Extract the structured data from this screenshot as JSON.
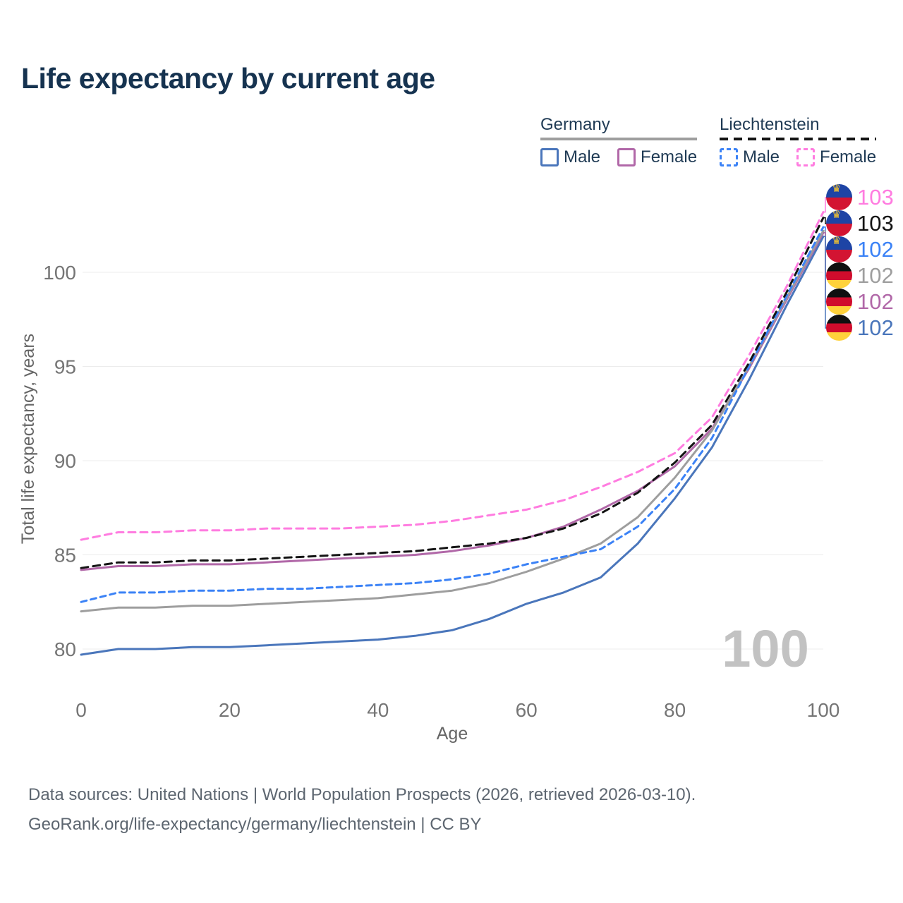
{
  "title": "Life expectancy by current age",
  "legend": {
    "groups": [
      {
        "name": "Germany",
        "line_style": "solid",
        "underline_color": "#9e9e9e",
        "items": [
          {
            "label": "Male",
            "color": "#4a76bb",
            "dashed": false
          },
          {
            "label": "Female",
            "color": "#b168a8",
            "dashed": false
          }
        ]
      },
      {
        "name": "Liechtenstein",
        "line_style": "dashed",
        "underline_color": "#141414",
        "items": [
          {
            "label": "Male",
            "color": "#3b82f6",
            "dashed": true
          },
          {
            "label": "Female",
            "color": "#ff7ce0",
            "dashed": true
          }
        ]
      }
    ]
  },
  "chart_data": {
    "type": "line",
    "title": "Life expectancy by current age",
    "xlabel": "Age",
    "ylabel": "Total life expectancy, years",
    "x_ticks": [
      0,
      20,
      40,
      60,
      80,
      100
    ],
    "y_ticks": [
      80,
      85,
      90,
      95,
      100
    ],
    "xlim": [
      0,
      100
    ],
    "ylim": [
      79,
      104
    ],
    "grid": "horizontal",
    "legend_position": "top-right",
    "watermark": "100",
    "x": [
      0,
      5,
      10,
      15,
      20,
      25,
      30,
      35,
      40,
      45,
      50,
      55,
      60,
      65,
      70,
      75,
      80,
      85,
      90,
      95,
      100
    ],
    "series": [
      {
        "name": "Liechtenstein Female",
        "flag": "liechtenstein",
        "sex": "Female",
        "color": "#ff7ce0",
        "dash": "10 7",
        "end_label": "103",
        "values": [
          85.8,
          86.2,
          86.2,
          86.3,
          86.3,
          86.4,
          86.4,
          86.4,
          86.5,
          86.6,
          86.8,
          87.1,
          87.4,
          87.9,
          88.6,
          89.4,
          90.4,
          92.3,
          95.6,
          99.2,
          103.2
        ]
      },
      {
        "name": "Liechtenstein Both sexes",
        "flag": "liechtenstein",
        "sex": "Total",
        "color": "#141414",
        "dash": "10 7",
        "end_label": "103",
        "values": [
          84.3,
          84.6,
          84.6,
          84.7,
          84.7,
          84.8,
          84.9,
          85.0,
          85.1,
          85.2,
          85.4,
          85.6,
          85.9,
          86.4,
          87.2,
          88.3,
          89.9,
          91.9,
          95.2,
          98.9,
          102.9
        ]
      },
      {
        "name": "Liechtenstein Male",
        "flag": "liechtenstein",
        "sex": "Male",
        "color": "#3b82f6",
        "dash": "8 6",
        "end_label": "102",
        "values": [
          82.5,
          83.0,
          83.0,
          83.1,
          83.1,
          83.2,
          83.2,
          83.3,
          83.4,
          83.5,
          83.7,
          84.0,
          84.5,
          84.9,
          85.3,
          86.5,
          88.5,
          91.2,
          95.0,
          98.7,
          102.4
        ]
      },
      {
        "name": "Germany Both sexes",
        "flag": "germany",
        "sex": "Total",
        "color": "#9e9e9e",
        "dash": null,
        "end_label": "102",
        "values": [
          82.0,
          82.2,
          82.2,
          82.3,
          82.3,
          82.4,
          82.5,
          82.6,
          82.7,
          82.9,
          83.1,
          83.5,
          84.1,
          84.8,
          85.6,
          87.0,
          89.1,
          91.6,
          95.0,
          98.6,
          102.2
        ]
      },
      {
        "name": "Germany Female",
        "flag": "germany",
        "sex": "Female",
        "color": "#b168a8",
        "dash": null,
        "end_label": "102",
        "values": [
          84.2,
          84.4,
          84.4,
          84.5,
          84.5,
          84.6,
          84.7,
          84.8,
          84.9,
          85.0,
          85.2,
          85.5,
          85.9,
          86.5,
          87.4,
          88.4,
          89.7,
          91.7,
          94.9,
          98.5,
          102.1
        ]
      },
      {
        "name": "Germany Male",
        "flag": "germany",
        "sex": "Male",
        "color": "#4a76bb",
        "dash": null,
        "end_label": "102",
        "values": [
          79.7,
          80.0,
          80.0,
          80.1,
          80.1,
          80.2,
          80.3,
          80.4,
          80.5,
          80.7,
          81.0,
          81.6,
          82.4,
          83.0,
          83.8,
          85.6,
          88.0,
          90.7,
          94.3,
          98.2,
          101.9
        ]
      }
    ]
  },
  "footer": {
    "line1": "Data sources: United Nations | World Population Prospects (2026, retrieved 2026-03-10).",
    "line2": "GeoRank.org/life-expectancy/germany/liechtenstein | CC BY"
  }
}
